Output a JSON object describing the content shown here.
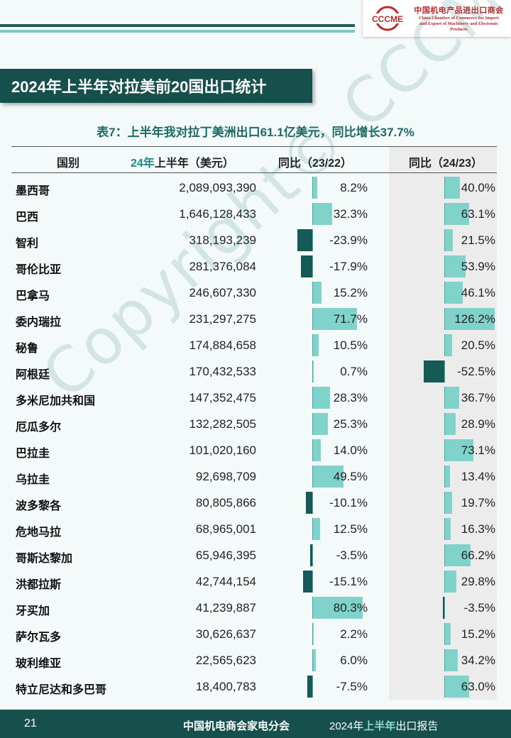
{
  "header": {
    "logo_acronym": "CCCME",
    "logo_cn": "中国机电产品进出口商会",
    "logo_en_line1": "China Chamber of Commerce for Import",
    "logo_en_line2": "and Export of Machinery and Electronic Products"
  },
  "title": "2024年上半年对拉美前20国出口统计",
  "subtitle": "表7：上半年我对拉丁美洲出口61.1亿美元，同比增长37.7%",
  "table": {
    "col_country": "国别",
    "col_value_prefix": "24年",
    "col_value_suffix": "上半年（美元）",
    "col_yoy1": "同比（23/22）",
    "col_yoy2": "同比（24/23）",
    "rows": [
      {
        "country": "墨西哥",
        "value": "2,089,093,390",
        "yoy1": "8.2%",
        "yoy1_num": 8.2,
        "yoy2": "40.0%",
        "yoy2_num": 40.0
      },
      {
        "country": "巴西",
        "value": "1,646,128,433",
        "yoy1": "32.3%",
        "yoy1_num": 32.3,
        "yoy2": "63.1%",
        "yoy2_num": 63.1
      },
      {
        "country": "智利",
        "value": "318,193,239",
        "yoy1": "-23.9%",
        "yoy1_num": -23.9,
        "yoy2": "21.5%",
        "yoy2_num": 21.5
      },
      {
        "country": "哥伦比亚",
        "value": "281,376,084",
        "yoy1": "-17.9%",
        "yoy1_num": -17.9,
        "yoy2": "53.9%",
        "yoy2_num": 53.9
      },
      {
        "country": "巴拿马",
        "value": "246,607,330",
        "yoy1": "15.2%",
        "yoy1_num": 15.2,
        "yoy2": "46.1%",
        "yoy2_num": 46.1
      },
      {
        "country": "委内瑞拉",
        "value": "231,297,275",
        "yoy1": "71.7%",
        "yoy1_num": 71.7,
        "yoy2": "126.2%",
        "yoy2_num": 126.2
      },
      {
        "country": "秘鲁",
        "value": "174,884,658",
        "yoy1": "10.5%",
        "yoy1_num": 10.5,
        "yoy2": "20.5%",
        "yoy2_num": 20.5
      },
      {
        "country": "阿根廷",
        "value": "170,432,533",
        "yoy1": "0.7%",
        "yoy1_num": 0.7,
        "yoy2": "-52.5%",
        "yoy2_num": -52.5
      },
      {
        "country": "多米尼加共和国",
        "value": "147,352,475",
        "yoy1": "28.3%",
        "yoy1_num": 28.3,
        "yoy2": "36.7%",
        "yoy2_num": 36.7
      },
      {
        "country": "厄瓜多尔",
        "value": "132,282,505",
        "yoy1": "25.3%",
        "yoy1_num": 25.3,
        "yoy2": "28.9%",
        "yoy2_num": 28.9
      },
      {
        "country": "巴拉圭",
        "value": "101,020,160",
        "yoy1": "14.0%",
        "yoy1_num": 14.0,
        "yoy2": "73.1%",
        "yoy2_num": 73.1
      },
      {
        "country": "乌拉圭",
        "value": "92,698,709",
        "yoy1": "49.5%",
        "yoy1_num": 49.5,
        "yoy2": "13.4%",
        "yoy2_num": 13.4
      },
      {
        "country": "波多黎各",
        "value": "80,805,866",
        "yoy1": "-10.1%",
        "yoy1_num": -10.1,
        "yoy2": "19.7%",
        "yoy2_num": 19.7
      },
      {
        "country": "危地马拉",
        "value": "68,965,001",
        "yoy1": "12.5%",
        "yoy1_num": 12.5,
        "yoy2": "16.3%",
        "yoy2_num": 16.3
      },
      {
        "country": "哥斯达黎加",
        "value": "65,946,395",
        "yoy1": "-3.5%",
        "yoy1_num": -3.5,
        "yoy2": "66.2%",
        "yoy2_num": 66.2
      },
      {
        "country": "洪都拉斯",
        "value": "42,744,154",
        "yoy1": "-15.1%",
        "yoy1_num": -15.1,
        "yoy2": "29.8%",
        "yoy2_num": 29.8
      },
      {
        "country": "牙买加",
        "value": "41,239,887",
        "yoy1": "80.3%",
        "yoy1_num": 80.3,
        "yoy2": "-3.5%",
        "yoy2_num": -3.5
      },
      {
        "country": "萨尔瓦多",
        "value": "30,626,637",
        "yoy1": "2.2%",
        "yoy1_num": 2.2,
        "yoy2": "15.2%",
        "yoy2_num": 15.2
      },
      {
        "country": "玻利维亚",
        "value": "22,565,623",
        "yoy1": "6.0%",
        "yoy1_num": 6.0,
        "yoy2": "34.2%",
        "yoy2_num": 34.2
      },
      {
        "country": "特立尼达和多巴哥",
        "value": "18,400,783",
        "yoy1": "-7.5%",
        "yoy1_num": -7.5,
        "yoy2": "63.0%",
        "yoy2_num": 63.0
      }
    ]
  },
  "watermark": "Copyright© CCCME",
  "footer": {
    "page": "21",
    "org": "中国机电商会家电分会",
    "report_prefix": "2024年",
    "report_highlight": "上半年",
    "report_suffix": "出口报告"
  },
  "colors": {
    "dark_teal": "#15504c",
    "bar_positive": "#7fd3cb",
    "bar_negative": "#155a56",
    "brand_red": "#c0282e"
  }
}
